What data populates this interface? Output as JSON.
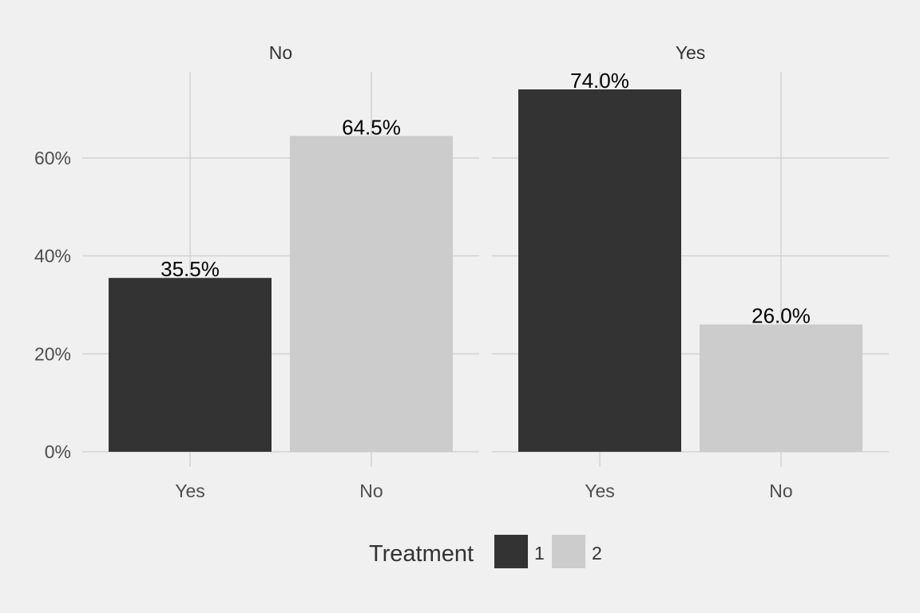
{
  "chart_data": {
    "type": "bar",
    "y_unit": "%",
    "ylim": [
      0,
      74.0
    ],
    "y_ticks": [
      0,
      20,
      40,
      60
    ],
    "y_tick_labels": [
      "0%",
      "20%",
      "40%",
      "60%"
    ],
    "grid": true,
    "legend": {
      "title": "Treatment",
      "placement": "bottom",
      "entries": [
        {
          "label": "1",
          "color": "#333333"
        },
        {
          "label": "2",
          "color": "#cccccc"
        }
      ]
    },
    "facets": [
      {
        "label": "No",
        "bars": [
          {
            "category": "Yes",
            "treatment": "1",
            "value": 35.5,
            "label": "35.5%"
          },
          {
            "category": "No",
            "treatment": "2",
            "value": 64.5,
            "label": "64.5%"
          }
        ]
      },
      {
        "label": "Yes",
        "bars": [
          {
            "category": "Yes",
            "treatment": "1",
            "value": 74.0,
            "label": "74.0%"
          },
          {
            "category": "No",
            "treatment": "2",
            "value": 26.0,
            "label": "26.0%"
          }
        ]
      }
    ]
  }
}
